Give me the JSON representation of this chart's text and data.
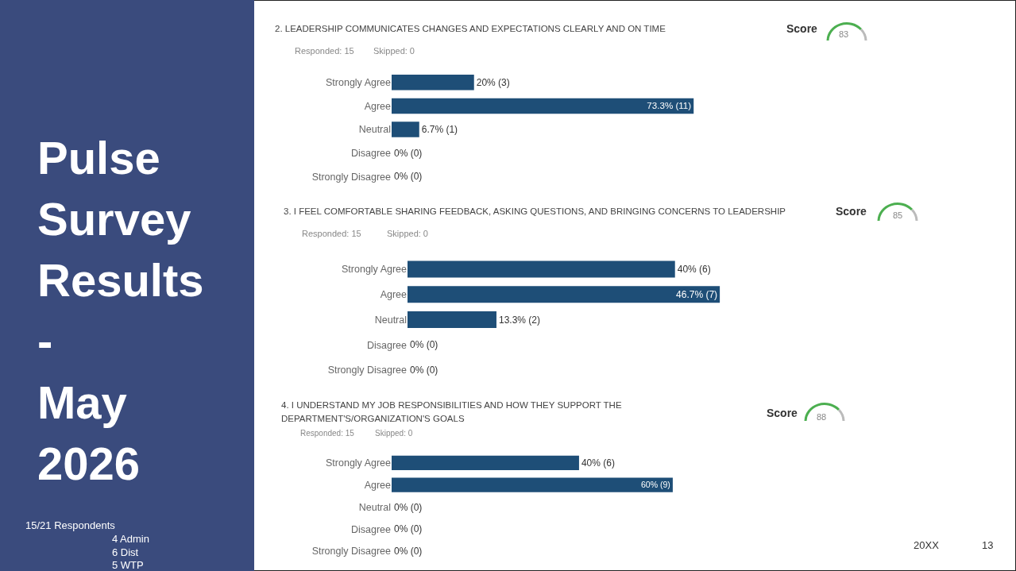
{
  "chart_data": [
    {
      "type": "other",
      "title": "Pulse Survey Results - May 2026",
      "annotations": [
        "15/21 Respondents",
        "4 Admin",
        "6 Dist",
        "5 WTP",
        "20XX",
        "13"
      ]
    },
    {
      "type": "bar",
      "orientation": "horizontal",
      "title": "2.   LEADERSHIP COMMUNICATES CHANGES AND EXPECTATIONS CLEARLY AND ON TIME",
      "annotations": [
        "Responded: 15",
        "Skipped: 0",
        "Score",
        "83"
      ],
      "categories": [
        "Strongly Agree",
        "Agree",
        "Neutral",
        "Disagree",
        "Strongly Disagree"
      ],
      "values": [
        20,
        73.3,
        6.7,
        0,
        0
      ],
      "value_labels": [
        "20% (3)",
        "73.3% (11)",
        "6.7% (1)",
        "0% (0)",
        "0% (0)"
      ],
      "color": "#1e4e77",
      "tick_labels": "y",
      "grid": false,
      "legend": false
    },
    {
      "type": "bar",
      "orientation": "horizontal",
      "title": "3.   I FEEL COMFORTABLE SHARING FEEDBACK, ASKING QUESTIONS, AND BRINGING CONCERNS TO LEADERSHIP",
      "annotations": [
        "Responded: 15",
        "Skipped: 0",
        "Score",
        "85"
      ],
      "categories": [
        "Strongly Agree",
        "Agree",
        "Neutral",
        "Disagree",
        "Strongly Disagree"
      ],
      "values": [
        40,
        46.7,
        13.3,
        0,
        0
      ],
      "value_labels": [
        "40% (6)",
        "46.7% (7)",
        "13.3% (2)",
        "0% (0)",
        "0% (0)"
      ],
      "color": "#1e4e77",
      "tick_labels": "y",
      "grid": false,
      "legend": false
    },
    {
      "type": "bar",
      "orientation": "horizontal",
      "title": "4.   I UNDERSTAND MY JOB RESPONSIBILITIES AND HOW THEY SUPPORT THE DEPARTMENT'S/ORGANIZATION'S GOALS",
      "annotations": [
        "Responded: 15",
        "Skipped: 0",
        "Score",
        "88"
      ],
      "categories": [
        "Strongly Agree",
        "Agree",
        "Neutral",
        "Disagree",
        "Strongly Disagree"
      ],
      "values": [
        40,
        60,
        0,
        0,
        0
      ],
      "value_labels": [
        "40% (6)",
        "60% (9)",
        "0% (0)",
        "0% (0)",
        "0% (0)"
      ],
      "color": "#1e4e77",
      "tick_labels": "y",
      "grid": false,
      "legend": false
    }
  ]
}
